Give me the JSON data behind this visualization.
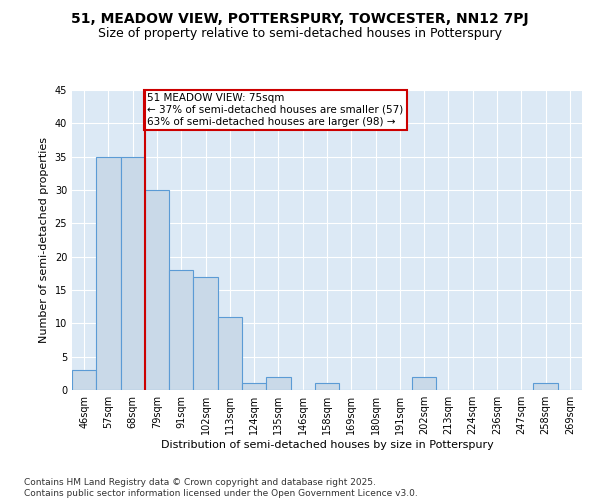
{
  "title": "51, MEADOW VIEW, POTTERSPURY, TOWCESTER, NN12 7PJ",
  "subtitle": "Size of property relative to semi-detached houses in Potterspury",
  "xlabel": "Distribution of semi-detached houses by size in Potterspury",
  "ylabel": "Number of semi-detached properties",
  "bins": [
    "46sqm",
    "57sqm",
    "68sqm",
    "79sqm",
    "91sqm",
    "102sqm",
    "113sqm",
    "124sqm",
    "135sqm",
    "146sqm",
    "158sqm",
    "169sqm",
    "180sqm",
    "191sqm",
    "202sqm",
    "213sqm",
    "224sqm",
    "236sqm",
    "247sqm",
    "258sqm",
    "269sqm"
  ],
  "values": [
    3,
    35,
    35,
    30,
    18,
    17,
    11,
    1,
    2,
    0,
    1,
    0,
    0,
    0,
    2,
    0,
    0,
    0,
    0,
    1,
    0
  ],
  "bar_color": "#c9d9e8",
  "bar_edge_color": "#5b9bd5",
  "subject_line_color": "#cc0000",
  "annotation_text": "51 MEADOW VIEW: 75sqm\n← 37% of semi-detached houses are smaller (57)\n63% of semi-detached houses are larger (98) →",
  "annotation_box_color": "#cc0000",
  "ylim": [
    0,
    45
  ],
  "yticks": [
    0,
    5,
    10,
    15,
    20,
    25,
    30,
    35,
    40,
    45
  ],
  "footer": "Contains HM Land Registry data © Crown copyright and database right 2025.\nContains public sector information licensed under the Open Government Licence v3.0.",
  "bg_color": "#dce9f5",
  "title_fontsize": 10,
  "subtitle_fontsize": 9,
  "axis_label_fontsize": 8,
  "tick_fontsize": 7,
  "annotation_fontsize": 7.5,
  "footer_fontsize": 6.5
}
